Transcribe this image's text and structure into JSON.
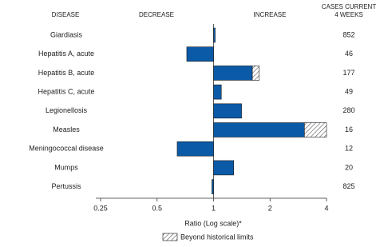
{
  "chart_data": {
    "type": "bar",
    "orientation": "horizontal",
    "x_scale": "log2",
    "headers": {
      "disease": "DISEASE",
      "decrease": "DECREASE",
      "increase": "INCREASE",
      "cases": [
        "CASES CURRENT",
        "4 WEEKS"
      ]
    },
    "categories": [
      "Giardiasis",
      "Hepatitis A, acute",
      "Hepatitis B, acute",
      "Hepatitis C, acute",
      "Legionellosis",
      "Measles",
      "Meningococcal disease",
      "Mumps",
      "Pertussis"
    ],
    "values": [
      1.02,
      0.72,
      1.75,
      1.1,
      1.41,
      4.0,
      0.64,
      1.28,
      0.98
    ],
    "color": "#0b5aa7",
    "beyond_limits": {
      "label": "Beyond historical limits",
      "from": [
        null,
        null,
        1.61,
        null,
        null,
        3.05,
        null,
        null,
        null
      ]
    },
    "cases": [
      852,
      46,
      177,
      49,
      280,
      16,
      12,
      20,
      825
    ],
    "xlim": [
      0.25,
      4
    ],
    "xticks": [
      0.25,
      0.5,
      1,
      2,
      4
    ],
    "baseline": 1,
    "xlabel": "Ratio (Log scale)*"
  }
}
